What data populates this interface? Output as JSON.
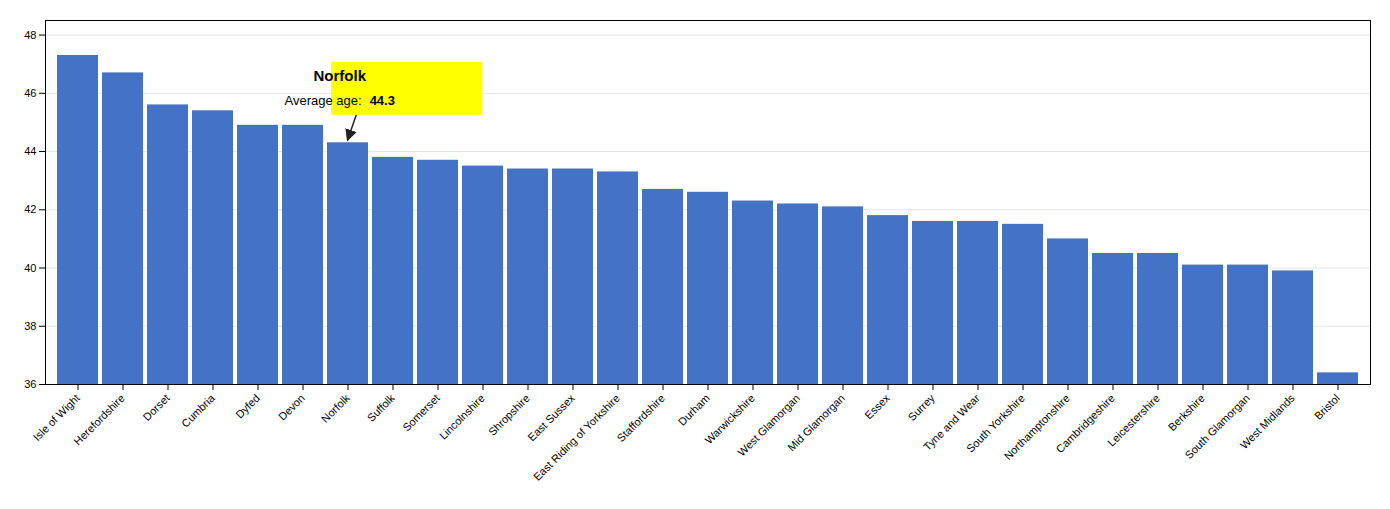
{
  "chart_data": {
    "type": "bar",
    "categories": [
      "Isle of Wight",
      "Herefordshire",
      "Dorset",
      "Cumbria",
      "Dyfed",
      "Devon",
      "Norfolk",
      "Suffolk",
      "Somerset",
      "Lincolnshire",
      "Shropshire",
      "East Sussex",
      "East Riding of Yorkshire",
      "Staffordshire",
      "Durham",
      "Warwickshire",
      "West Glamorgan",
      "Mid Glamorgan",
      "Essex",
      "Surrey",
      "Tyne and Wear",
      "South Yorkshire",
      "Northamptonshire",
      "Cambridgeshire",
      "Leicestershire",
      "Berkshire",
      "South Glamorgan",
      "West Midlands",
      "Bristol"
    ],
    "values": [
      47.3,
      46.7,
      45.6,
      45.4,
      44.9,
      44.9,
      44.3,
      43.8,
      43.7,
      43.5,
      43.4,
      43.4,
      43.3,
      42.7,
      42.6,
      42.3,
      42.2,
      42.1,
      41.8,
      41.6,
      41.6,
      41.5,
      41.0,
      40.5,
      40.5,
      40.1,
      40.1,
      39.9,
      36.4
    ],
    "color": "#4472c4",
    "ylim": [
      36,
      48.5
    ],
    "yticks": [
      36,
      38,
      40,
      42,
      44,
      46,
      48
    ],
    "grid": true,
    "annotations": [
      {
        "x": "Norfolk",
        "title": "Norfolk",
        "text": "Average age:",
        "value": 44.3,
        "color": "#ffff00"
      }
    ]
  }
}
